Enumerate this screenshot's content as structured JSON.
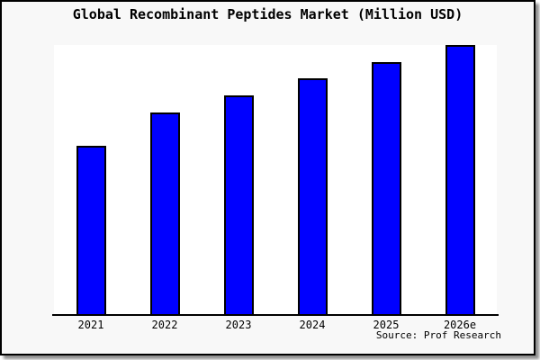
{
  "page": {
    "title": "Global Recombinant Peptides Market (Million USD)"
  },
  "chart_data": {
    "type": "bar",
    "title": "Global Recombinant Peptides Market (Million USD)",
    "categories": [
      "2021",
      "2022",
      "2023",
      "2024",
      "2025",
      "2026e"
    ],
    "values": [
      62.5,
      74.9,
      81.3,
      87.6,
      93.6,
      100
    ],
    "values_note": "No y-axis scale or data labels are shown in the image; values are estimated bar heights expressed as percent of the tallest (2026e) bar.",
    "xlabel": "",
    "ylabel": "",
    "ylim": [
      0,
      100
    ],
    "grid": false,
    "legend": "none",
    "source": "Source: Prof Research"
  },
  "colors": {
    "bar_fill": "#0000ff",
    "bar_border": "#000000",
    "plot_background": "#ffffff",
    "canvas_background": "#f8f8f8",
    "frame_border": "#000000",
    "shadow": "#8f8f8f",
    "text": "#000000"
  }
}
